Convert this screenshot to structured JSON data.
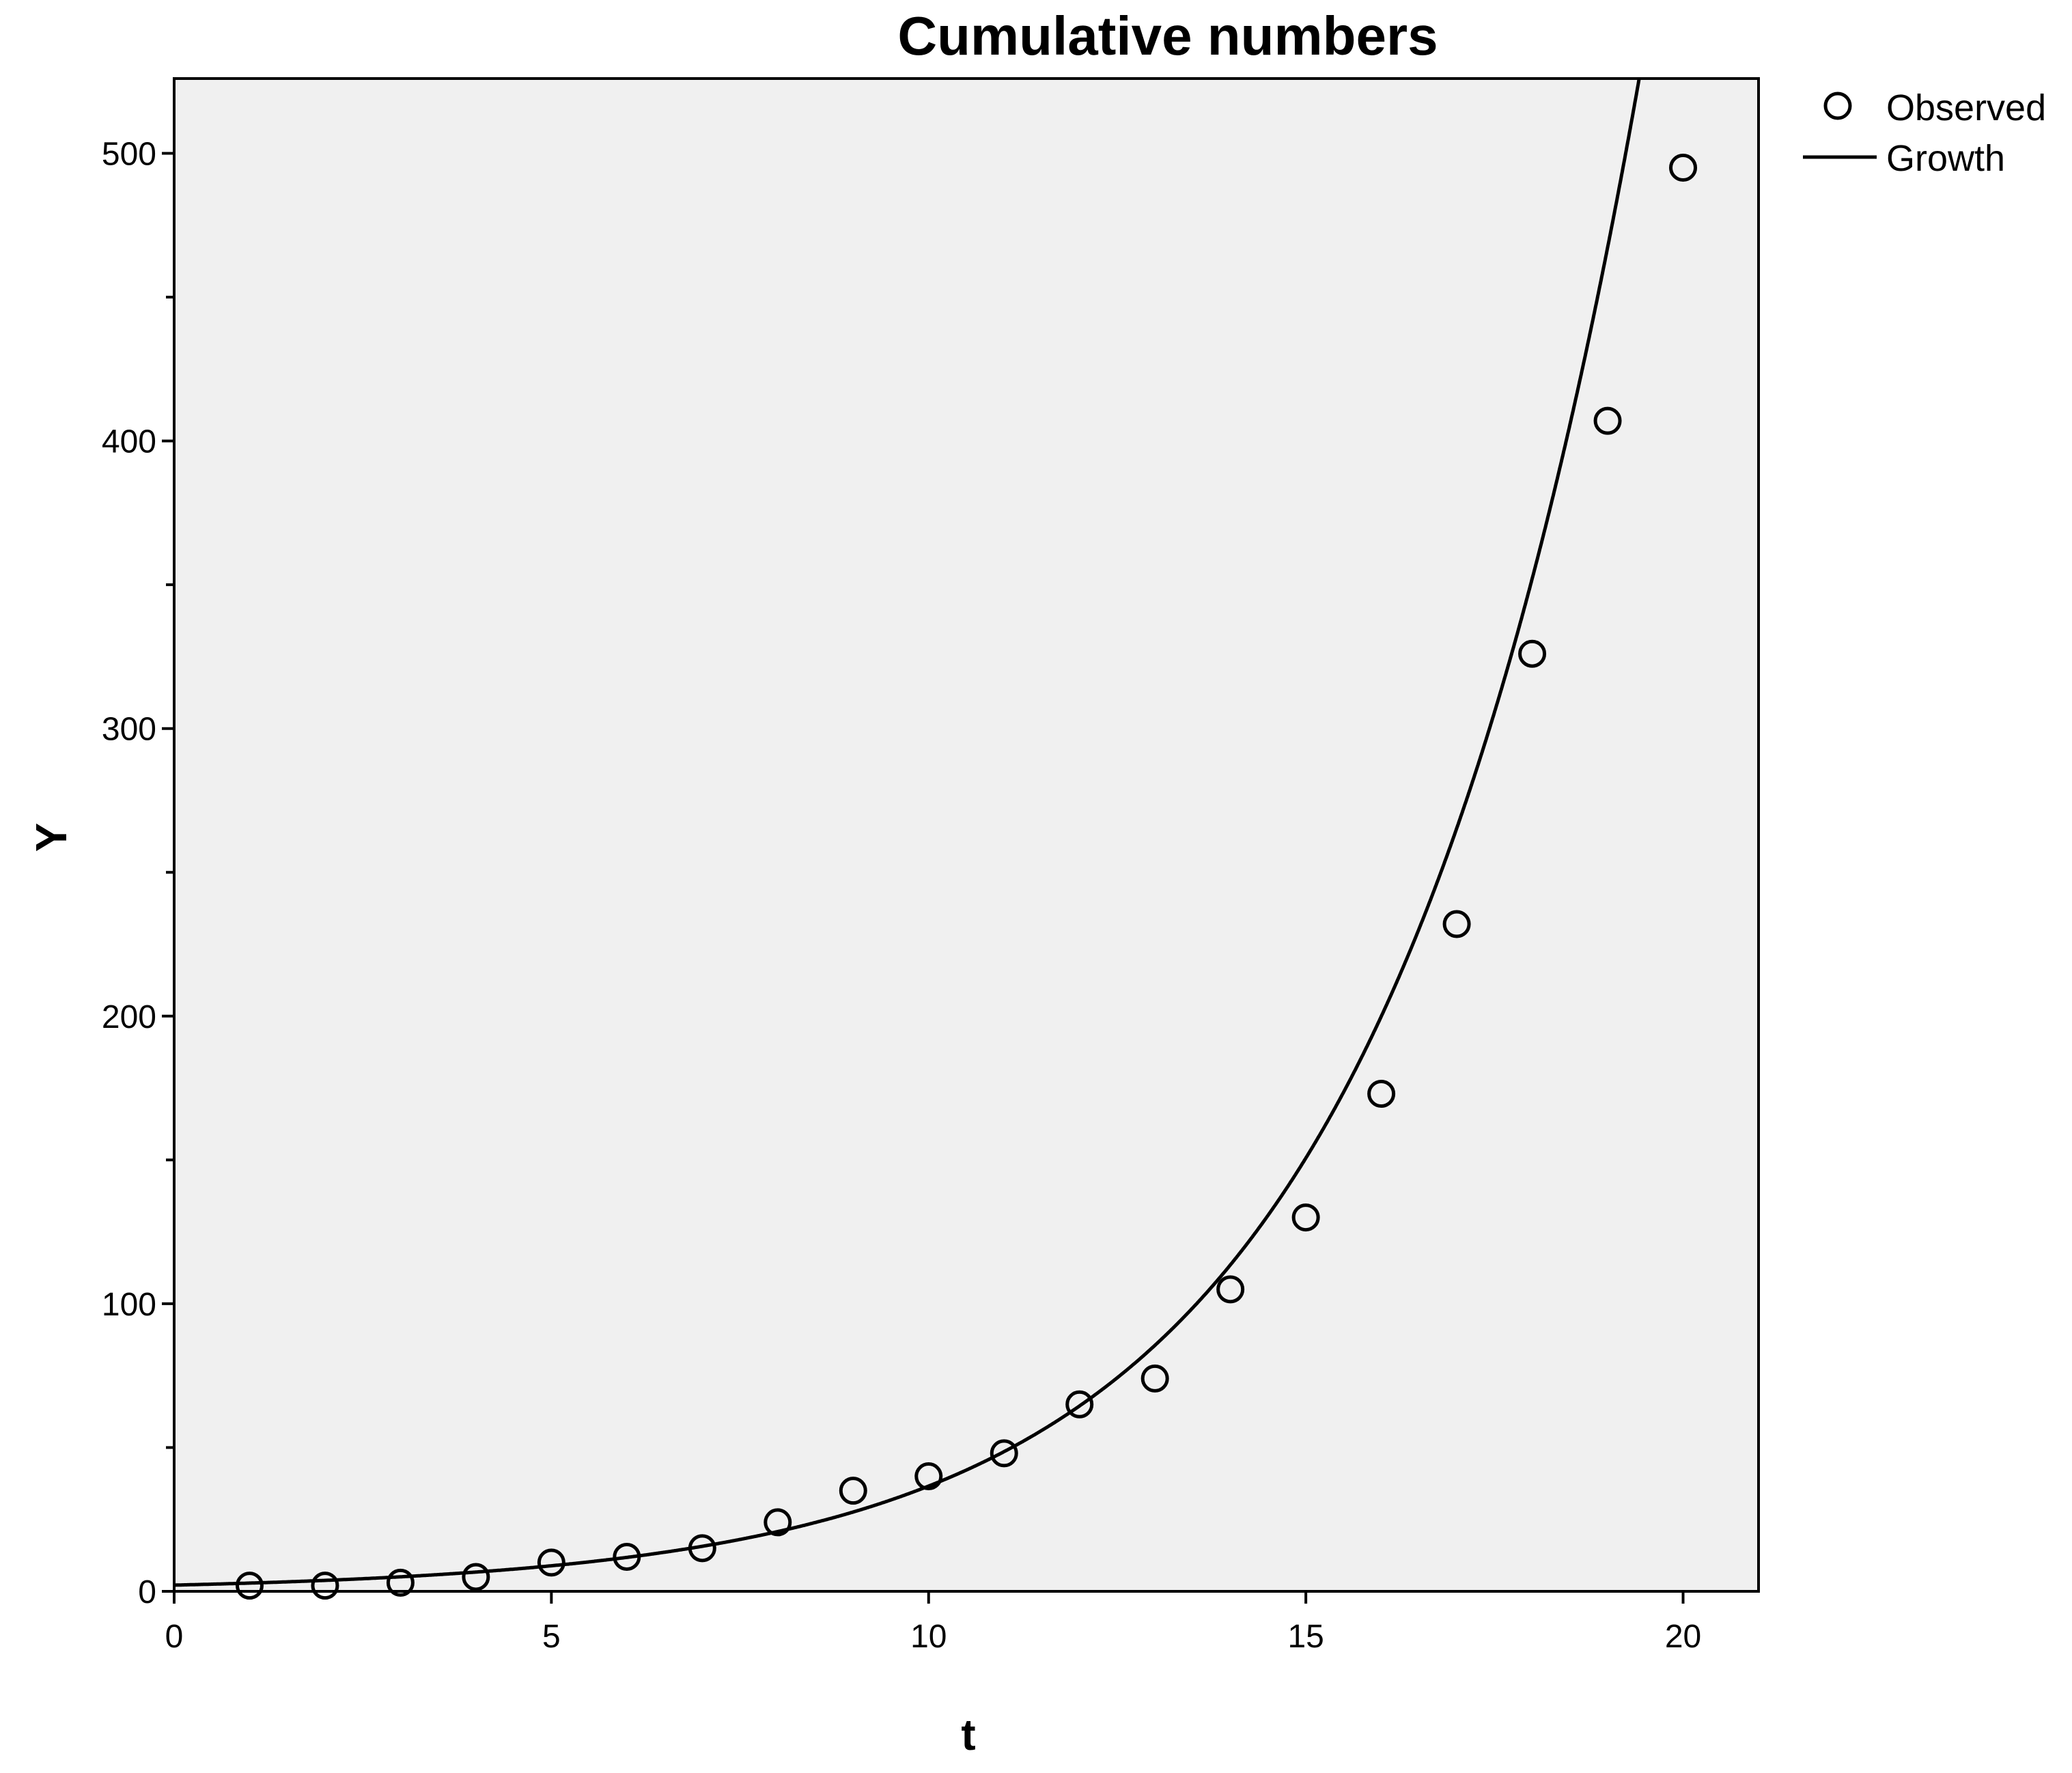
{
  "chart_data": {
    "type": "scatter",
    "title": "Cumulative numbers",
    "xlabel": "t",
    "ylabel": "Y",
    "xlim": [
      0,
      21
    ],
    "ylim": [
      0,
      526
    ],
    "xticks": [
      0,
      5,
      10,
      15,
      20
    ],
    "yticks": [
      0,
      100,
      200,
      300,
      400,
      500
    ],
    "grid": false,
    "legend_position": "top-right, outside plot",
    "plot_background": "#f0f0f0",
    "series": [
      {
        "name": "Observed",
        "kind": "markers",
        "marker": "open-circle",
        "x": [
          1,
          2,
          3,
          4,
          5,
          6,
          7,
          8,
          9,
          10,
          11,
          12,
          13,
          14,
          15,
          16,
          17,
          18,
          19,
          20
        ],
        "values": [
          2,
          2,
          3,
          5,
          10,
          12,
          15,
          24,
          35,
          40,
          48,
          65,
          74,
          105,
          130,
          173,
          232,
          326,
          407,
          495
        ]
      },
      {
        "name": "Growth",
        "kind": "line",
        "model": "Y = exp(b0 + b1*t)",
        "b0": 0.77,
        "b1": 0.283
      }
    ]
  }
}
